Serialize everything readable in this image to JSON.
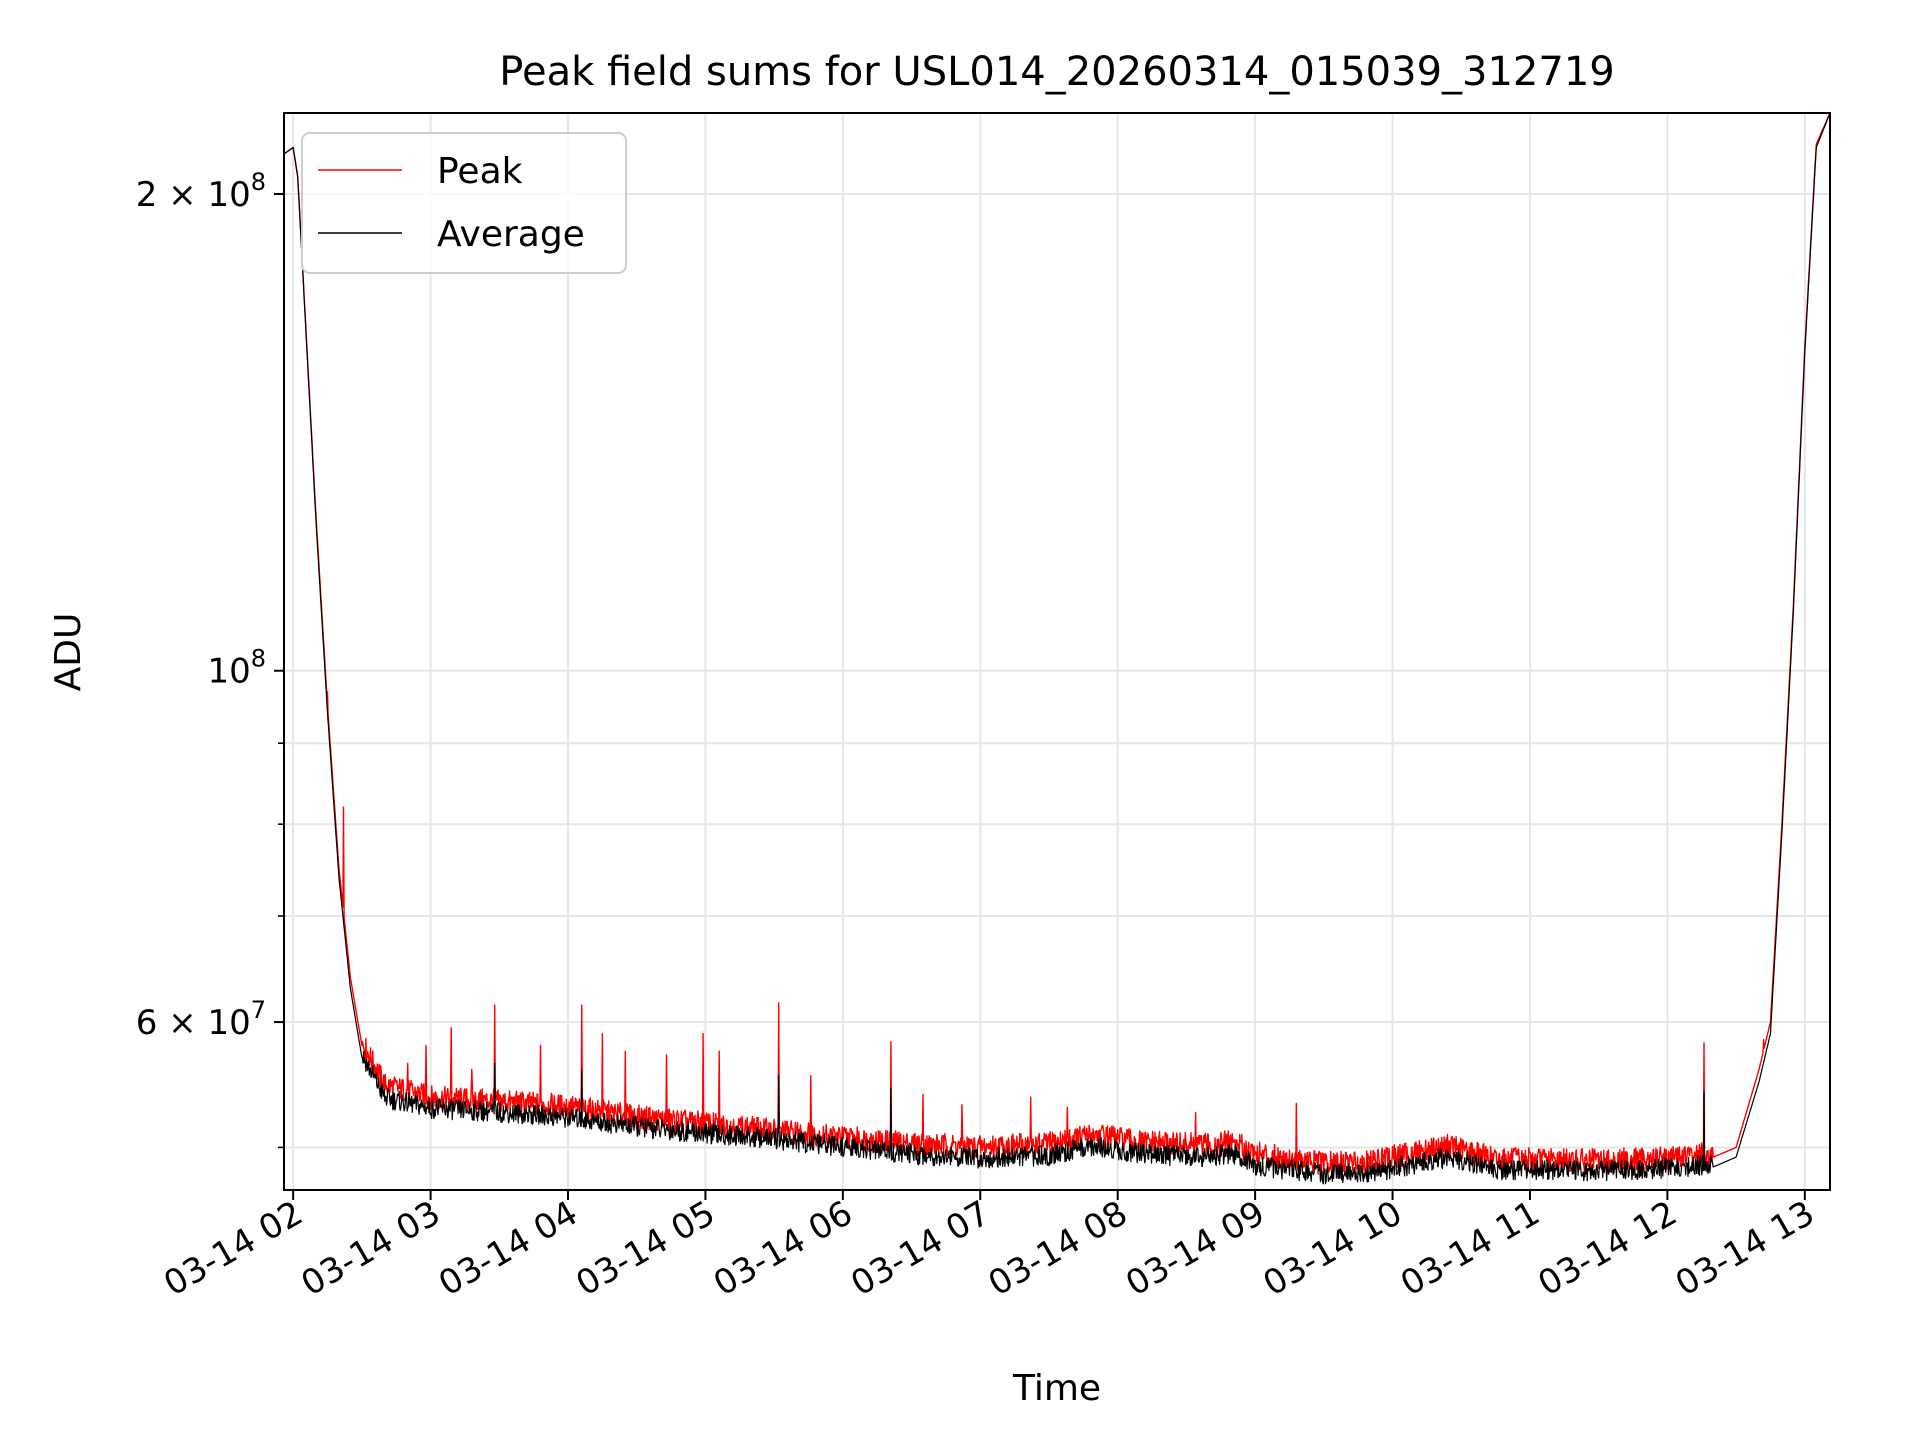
{
  "chart_data": {
    "type": "line",
    "title": "Peak field sums for USL014_20260314_015039_312719",
    "xlabel": "Time",
    "ylabel": "ADU",
    "y_scale": "log",
    "ylim": [
      47000000,
      225000000
    ],
    "xlim": [
      "2026-03-14 01:56",
      "2026-03-14 13:11"
    ],
    "grid": true,
    "legend_position": "top-left",
    "x_ticks": [
      "03-14 02",
      "03-14 03",
      "03-14 04",
      "03-14 05",
      "03-14 06",
      "03-14 07",
      "03-14 08",
      "03-14 09",
      "03-14 10",
      "03-14 11",
      "03-14 12",
      "03-14 13"
    ],
    "y_tick_labels": [
      {
        "value": 200000000,
        "label": "2 × 10^8",
        "base": "2 × 10",
        "exp": "8"
      },
      {
        "value": 100000000,
        "label": "10^8",
        "base": "10",
        "exp": "8"
      },
      {
        "value": 60000000,
        "label": "6 × 10^7",
        "base": "6 × 10",
        "exp": "7"
      }
    ],
    "y_minor_ticks": [
      50000000,
      70000000,
      80000000,
      90000000
    ],
    "series": [
      {
        "name": "Peak",
        "color": "#ff0000",
        "points": [
          [
            "2026-03-14 01:56",
            212000000
          ],
          [
            "2026-03-14 02:00",
            214000000
          ],
          [
            "2026-03-14 02:02",
            205000000
          ],
          [
            "2026-03-14 02:10",
            125000000
          ],
          [
            "2026-03-14 02:15",
            95000000
          ],
          [
            "2026-03-14 02:20",
            75000000
          ],
          [
            "2026-03-14 02:25",
            64000000
          ],
          [
            "2026-03-14 02:30",
            58000000
          ],
          [
            "2026-03-14 02:40",
            54500000
          ],
          [
            "2026-03-14 03:00",
            53500000
          ],
          [
            "2026-03-14 03:30",
            53200000
          ],
          [
            "2026-03-14 04:00",
            52800000
          ],
          [
            "2026-03-14 04:30",
            52000000
          ],
          [
            "2026-03-14 05:00",
            51500000
          ],
          [
            "2026-03-14 05:30",
            51000000
          ],
          [
            "2026-03-14 06:00",
            50500000
          ],
          [
            "2026-03-14 06:30",
            50000000
          ],
          [
            "2026-03-14 07:00",
            49800000
          ],
          [
            "2026-03-14 07:30",
            50000000
          ],
          [
            "2026-03-14 07:50",
            50700000
          ],
          [
            "2026-03-14 08:10",
            50100000
          ],
          [
            "2026-03-14 08:40",
            49900000
          ],
          [
            "2026-03-14 08:50",
            50200000
          ],
          [
            "2026-03-14 09:00",
            49300000
          ],
          [
            "2026-03-14 09:30",
            48600000
          ],
          [
            "2026-03-14 09:50",
            48700000
          ],
          [
            "2026-03-14 10:10",
            49400000
          ],
          [
            "2026-03-14 10:25",
            49900000
          ],
          [
            "2026-03-14 10:45",
            48900000
          ],
          [
            "2026-03-14 11:30",
            48800000
          ],
          [
            "2026-03-14 12:00",
            49000000
          ],
          [
            "2026-03-14 12:20",
            49300000
          ],
          [
            "2026-03-14 12:30",
            50000000
          ],
          [
            "2026-03-14 12:40",
            56000000
          ],
          [
            "2026-03-14 12:45",
            60000000
          ],
          [
            "2026-03-14 12:50",
            80000000
          ],
          [
            "2026-03-14 12:55",
            110000000
          ],
          [
            "2026-03-14 13:00",
            160000000
          ],
          [
            "2026-03-14 13:05",
            215000000
          ],
          [
            "2026-03-14 13:11",
            225000000
          ]
        ],
        "spikes": [
          [
            "2026-03-14 02:15",
            97000000
          ],
          [
            "2026-03-14 02:22",
            82000000
          ],
          [
            "2026-03-14 02:50",
            56500000
          ],
          [
            "2026-03-14 02:58",
            58000000
          ],
          [
            "2026-03-14 03:09",
            59500000
          ],
          [
            "2026-03-14 03:18",
            56000000
          ],
          [
            "2026-03-14 03:28",
            61500000
          ],
          [
            "2026-03-14 03:48",
            58000000
          ],
          [
            "2026-03-14 04:06",
            61500000
          ],
          [
            "2026-03-14 04:15",
            59000000
          ],
          [
            "2026-03-14 04:25",
            57500000
          ],
          [
            "2026-03-14 04:43",
            57200000
          ],
          [
            "2026-03-14 04:59",
            59000000
          ],
          [
            "2026-03-14 05:06",
            57500000
          ],
          [
            "2026-03-14 05:32",
            61700000
          ],
          [
            "2026-03-14 05:46",
            55500000
          ],
          [
            "2026-03-14 06:21",
            58300000
          ],
          [
            "2026-03-14 06:35",
            54000000
          ],
          [
            "2026-03-14 06:52",
            53200000
          ],
          [
            "2026-03-14 07:22",
            53800000
          ],
          [
            "2026-03-14 07:38",
            53000000
          ],
          [
            "2026-03-14 08:34",
            52600000
          ],
          [
            "2026-03-14 09:18",
            53300000
          ],
          [
            "2026-03-14 12:16",
            58200000
          ],
          [
            "2026-03-14 12:42",
            58500000
          ]
        ]
      },
      {
        "name": "Average",
        "color": "#000000",
        "points": [
          [
            "2026-03-14 01:56",
            212000000
          ],
          [
            "2026-03-14 02:00",
            214000000
          ],
          [
            "2026-03-14 02:02",
            205000000
          ],
          [
            "2026-03-14 02:10",
            124000000
          ],
          [
            "2026-03-14 02:15",
            94000000
          ],
          [
            "2026-03-14 02:20",
            74000000
          ],
          [
            "2026-03-14 02:25",
            63000000
          ],
          [
            "2026-03-14 02:30",
            57000000
          ],
          [
            "2026-03-14 02:40",
            53500000
          ],
          [
            "2026-03-14 03:00",
            52700000
          ],
          [
            "2026-03-14 03:30",
            52400000
          ],
          [
            "2026-03-14 04:00",
            52000000
          ],
          [
            "2026-03-14 04:30",
            51300000
          ],
          [
            "2026-03-14 05:00",
            50800000
          ],
          [
            "2026-03-14 05:30",
            50400000
          ],
          [
            "2026-03-14 06:00",
            49800000
          ],
          [
            "2026-03-14 06:30",
            49300000
          ],
          [
            "2026-03-14 07:00",
            49000000
          ],
          [
            "2026-03-14 07:30",
            49200000
          ],
          [
            "2026-03-14 07:50",
            49900000
          ],
          [
            "2026-03-14 08:10",
            49300000
          ],
          [
            "2026-03-14 08:40",
            49100000
          ],
          [
            "2026-03-14 08:50",
            49400000
          ],
          [
            "2026-03-14 09:00",
            48500000
          ],
          [
            "2026-03-14 09:30",
            47900000
          ],
          [
            "2026-03-14 09:50",
            48000000
          ],
          [
            "2026-03-14 10:10",
            48600000
          ],
          [
            "2026-03-14 10:25",
            49100000
          ],
          [
            "2026-03-14 10:45",
            48200000
          ],
          [
            "2026-03-14 11:30",
            48100000
          ],
          [
            "2026-03-14 12:00",
            48300000
          ],
          [
            "2026-03-14 12:20",
            48600000
          ],
          [
            "2026-03-14 12:30",
            49300000
          ],
          [
            "2026-03-14 12:40",
            55000000
          ],
          [
            "2026-03-14 12:45",
            59000000
          ],
          [
            "2026-03-14 12:50",
            79000000
          ],
          [
            "2026-03-14 12:55",
            109000000
          ],
          [
            "2026-03-14 13:00",
            159000000
          ],
          [
            "2026-03-14 13:05",
            214000000
          ],
          [
            "2026-03-14 13:11",
            225000000
          ]
        ],
        "spikes": [
          [
            "2026-03-14 03:28",
            56500000
          ],
          [
            "2026-03-14 04:06",
            56000000
          ],
          [
            "2026-03-14 05:32",
            55500000
          ],
          [
            "2026-03-14 06:21",
            54500000
          ],
          [
            "2026-03-14 12:16",
            54200000
          ]
        ]
      }
    ]
  }
}
